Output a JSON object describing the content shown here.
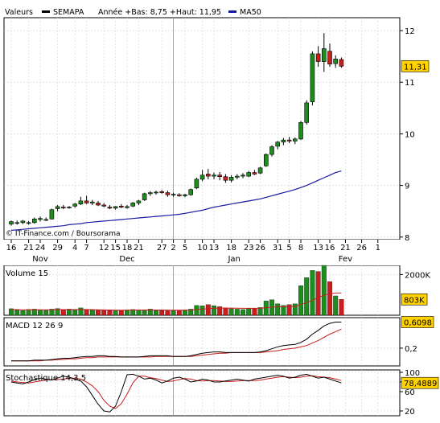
{
  "legend": {
    "security_label": "Valeurs",
    "security_name": "SEMAPA",
    "year_range": "Année +Bas: 8,75 +Haut: 11,95",
    "ma_label": "MA50",
    "price_color": "#000000",
    "ma_color": "#1a1aa0"
  },
  "credit": "© IT-Finance.com / Boursorama",
  "colors": {
    "up": "#1e8c1e",
    "down": "#c81e1e",
    "ma": "#1a1aa0",
    "macd": "#000000",
    "signal": "#c81e1e"
  },
  "x_axis": {
    "day_ticks": [
      "16",
      "21",
      "24",
      "29",
      "4",
      "7",
      "12",
      "15",
      "18",
      "21",
      "27",
      "2",
      "5",
      "10",
      "13",
      "18",
      "23",
      "26",
      "31",
      "5",
      "8",
      "13",
      "16",
      "21",
      "26",
      "1"
    ],
    "month_labels": [
      "Nov",
      "Dec",
      "Jan",
      "Fev"
    ]
  },
  "chart_data": [
    {
      "type": "candlestick",
      "name": "price",
      "y_ticks": [
        "12",
        "11",
        "10",
        "9",
        "8"
      ],
      "ylim": [
        7.95,
        12.25
      ],
      "last_value_label": "11,31",
      "sessions": 58,
      "ohlc": [
        [
          8.25,
          8.32,
          8.22,
          8.3
        ],
        [
          8.27,
          8.32,
          8.24,
          8.28
        ],
        [
          8.28,
          8.33,
          8.25,
          8.31
        ],
        [
          8.27,
          8.31,
          8.24,
          8.28
        ],
        [
          8.28,
          8.38,
          8.26,
          8.35
        ],
        [
          8.34,
          8.4,
          8.3,
          8.36
        ],
        [
          8.33,
          8.38,
          8.31,
          8.34
        ],
        [
          8.35,
          8.55,
          8.34,
          8.53
        ],
        [
          8.55,
          8.62,
          8.5,
          8.59
        ],
        [
          8.58,
          8.62,
          8.54,
          8.57
        ],
        [
          8.57,
          8.6,
          8.55,
          8.58
        ],
        [
          8.6,
          8.66,
          8.57,
          8.64
        ],
        [
          8.64,
          8.78,
          8.62,
          8.7
        ],
        [
          8.7,
          8.8,
          8.64,
          8.66
        ],
        [
          8.66,
          8.72,
          8.62,
          8.68
        ],
        [
          8.66,
          8.7,
          8.6,
          8.62
        ],
        [
          8.62,
          8.66,
          8.58,
          8.6
        ],
        [
          8.58,
          8.62,
          8.54,
          8.56
        ],
        [
          8.56,
          8.6,
          8.53,
          8.59
        ],
        [
          8.6,
          8.64,
          8.56,
          8.58
        ],
        [
          8.57,
          8.62,
          8.55,
          8.59
        ],
        [
          8.6,
          8.68,
          8.58,
          8.66
        ],
        [
          8.66,
          8.72,
          8.62,
          8.7
        ],
        [
          8.72,
          8.86,
          8.7,
          8.84
        ],
        [
          8.84,
          8.89,
          8.8,
          8.86
        ],
        [
          8.86,
          8.9,
          8.82,
          8.87
        ],
        [
          8.88,
          8.91,
          8.84,
          8.86
        ],
        [
          8.86,
          8.9,
          8.78,
          8.82
        ],
        [
          8.82,
          8.86,
          8.78,
          8.83
        ],
        [
          8.82,
          8.85,
          8.78,
          8.8
        ],
        [
          8.8,
          8.84,
          8.77,
          8.82
        ],
        [
          8.82,
          8.94,
          8.8,
          8.92
        ],
        [
          8.95,
          9.15,
          8.93,
          9.12
        ],
        [
          9.12,
          9.3,
          9.08,
          9.2
        ],
        [
          9.22,
          9.32,
          9.12,
          9.18
        ],
        [
          9.18,
          9.25,
          9.12,
          9.2
        ],
        [
          9.2,
          9.26,
          9.1,
          9.17
        ],
        [
          9.17,
          9.22,
          9.05,
          9.1
        ],
        [
          9.1,
          9.2,
          9.06,
          9.16
        ],
        [
          9.16,
          9.22,
          9.12,
          9.18
        ],
        [
          9.18,
          9.24,
          9.14,
          9.2
        ],
        [
          9.18,
          9.28,
          9.16,
          9.25
        ],
        [
          9.25,
          9.3,
          9.2,
          9.22
        ],
        [
          9.24,
          9.36,
          9.22,
          9.34
        ],
        [
          9.38,
          9.62,
          9.36,
          9.6
        ],
        [
          9.6,
          9.78,
          9.56,
          9.75
        ],
        [
          9.76,
          9.86,
          9.7,
          9.84
        ],
        [
          9.84,
          9.92,
          9.78,
          9.88
        ],
        [
          9.88,
          9.94,
          9.82,
          9.86
        ],
        [
          9.86,
          9.93,
          9.8,
          9.9
        ],
        [
          9.9,
          10.25,
          9.88,
          10.22
        ],
        [
          10.22,
          10.65,
          10.18,
          10.6
        ],
        [
          10.62,
          11.6,
          10.55,
          11.55
        ],
        [
          11.55,
          11.7,
          11.3,
          11.4
        ],
        [
          11.4,
          11.95,
          11.2,
          11.65
        ],
        [
          11.6,
          11.75,
          11.3,
          11.35
        ],
        [
          11.36,
          11.52,
          11.28,
          11.45
        ],
        [
          11.44,
          11.48,
          11.28,
          11.31
        ]
      ],
      "ma50": [
        8.13,
        8.14,
        8.15,
        8.16,
        8.17,
        8.18,
        8.19,
        8.2,
        8.21,
        8.22,
        8.24,
        8.25,
        8.26,
        8.28,
        8.29,
        8.3,
        8.31,
        8.32,
        8.33,
        8.34,
        8.35,
        8.36,
        8.37,
        8.38,
        8.39,
        8.4,
        8.41,
        8.42,
        8.43,
        8.44,
        8.46,
        8.48,
        8.5,
        8.52,
        8.55,
        8.58,
        8.6,
        8.62,
        8.64,
        8.66,
        8.68,
        8.7,
        8.72,
        8.74,
        8.77,
        8.8,
        8.83,
        8.86,
        8.89,
        8.92,
        8.96,
        9.0,
        9.05,
        9.1,
        9.15,
        9.2,
        9.25,
        9.28
      ]
    },
    {
      "type": "bar",
      "name": "volume",
      "label": "Volume 15",
      "y_ticks": [
        "2000K"
      ],
      "ylim": [
        0,
        2450
      ],
      "last_value_label": "803K",
      "values_k": [
        320,
        250,
        230,
        280,
        300,
        260,
        240,
        300,
        330,
        280,
        300,
        260,
        360,
        280,
        260,
        250,
        240,
        230,
        250,
        240,
        260,
        280,
        250,
        260,
        300,
        240,
        230,
        220,
        230,
        250,
        260,
        300,
        480,
        460,
        520,
        470,
        420,
        350,
        320,
        300,
        280,
        330,
        320,
        380,
        700,
        760,
        560,
        480,
        520,
        560,
        1450,
        1850,
        2200,
        2150,
        2450,
        1650,
        950,
        780
      ],
      "overlay": [
        280,
        275,
        270,
        272,
        275,
        270,
        265,
        270,
        280,
        278,
        280,
        275,
        285,
        280,
        275,
        270,
        262,
        255,
        252,
        250,
        252,
        258,
        258,
        258,
        262,
        258,
        255,
        252,
        250,
        250,
        252,
        258,
        280,
        300,
        325,
        345,
        355,
        355,
        350,
        345,
        340,
        340,
        338,
        342,
        370,
        400,
        410,
        420,
        430,
        440,
        520,
        620,
        740,
        860,
        990,
        1060,
        1090,
        1100
      ]
    },
    {
      "type": "line",
      "name": "macd",
      "label": "MACD 12 26 9",
      "y_ticks": [
        "0,2"
      ],
      "ylim": [
        -0.08,
        0.68
      ],
      "last_value_label": "0,6098",
      "macd": [
        0.0,
        0.0,
        0.0,
        0.0,
        0.01,
        0.01,
        0.01,
        0.02,
        0.03,
        0.04,
        0.04,
        0.05,
        0.06,
        0.07,
        0.07,
        0.08,
        0.08,
        0.07,
        0.07,
        0.06,
        0.06,
        0.06,
        0.06,
        0.07,
        0.08,
        0.08,
        0.08,
        0.08,
        0.07,
        0.07,
        0.07,
        0.08,
        0.1,
        0.12,
        0.13,
        0.14,
        0.14,
        0.13,
        0.13,
        0.13,
        0.13,
        0.13,
        0.13,
        0.14,
        0.16,
        0.19,
        0.22,
        0.24,
        0.25,
        0.26,
        0.29,
        0.34,
        0.42,
        0.48,
        0.55,
        0.59,
        0.61,
        0.61
      ],
      "signal": [
        0.0,
        0.0,
        0.0,
        0.0,
        0.0,
        0.0,
        0.01,
        0.01,
        0.02,
        0.02,
        0.03,
        0.03,
        0.04,
        0.05,
        0.05,
        0.06,
        0.06,
        0.06,
        0.06,
        0.06,
        0.06,
        0.06,
        0.06,
        0.06,
        0.06,
        0.07,
        0.07,
        0.07,
        0.07,
        0.07,
        0.07,
        0.07,
        0.08,
        0.09,
        0.1,
        0.11,
        0.12,
        0.12,
        0.13,
        0.13,
        0.13,
        0.13,
        0.13,
        0.13,
        0.14,
        0.15,
        0.16,
        0.18,
        0.19,
        0.2,
        0.22,
        0.24,
        0.28,
        0.32,
        0.37,
        0.42,
        0.46,
        0.5
      ]
    },
    {
      "type": "line",
      "name": "stochastic",
      "label": "Stochastique 14,3,5",
      "y_ticks": [
        "100",
        "80",
        "60",
        "20"
      ],
      "ylim": [
        10,
        105
      ],
      "last_value_label": "78,4889",
      "k": [
        80,
        78,
        76,
        80,
        85,
        88,
        86,
        84,
        88,
        92,
        90,
        86,
        82,
        70,
        52,
        34,
        20,
        18,
        30,
        60,
        95,
        96,
        92,
        86,
        88,
        84,
        78,
        82,
        88,
        90,
        86,
        80,
        82,
        86,
        84,
        80,
        80,
        82,
        84,
        86,
        84,
        82,
        86,
        88,
        90,
        92,
        94,
        92,
        88,
        90,
        94,
        96,
        92,
        88,
        90,
        86,
        82,
        78
      ],
      "d": [
        82,
        80,
        79,
        78,
        80,
        82,
        84,
        85,
        85,
        86,
        88,
        88,
        86,
        80,
        72,
        60,
        42,
        30,
        25,
        35,
        55,
        78,
        92,
        92,
        89,
        87,
        84,
        81,
        82,
        85,
        87,
        86,
        83,
        82,
        83,
        83,
        82,
        81,
        81,
        82,
        83,
        83,
        83,
        84,
        86,
        88,
        90,
        91,
        90,
        89,
        90,
        92,
        93,
        91,
        90,
        89,
        86,
        83
      ]
    }
  ]
}
